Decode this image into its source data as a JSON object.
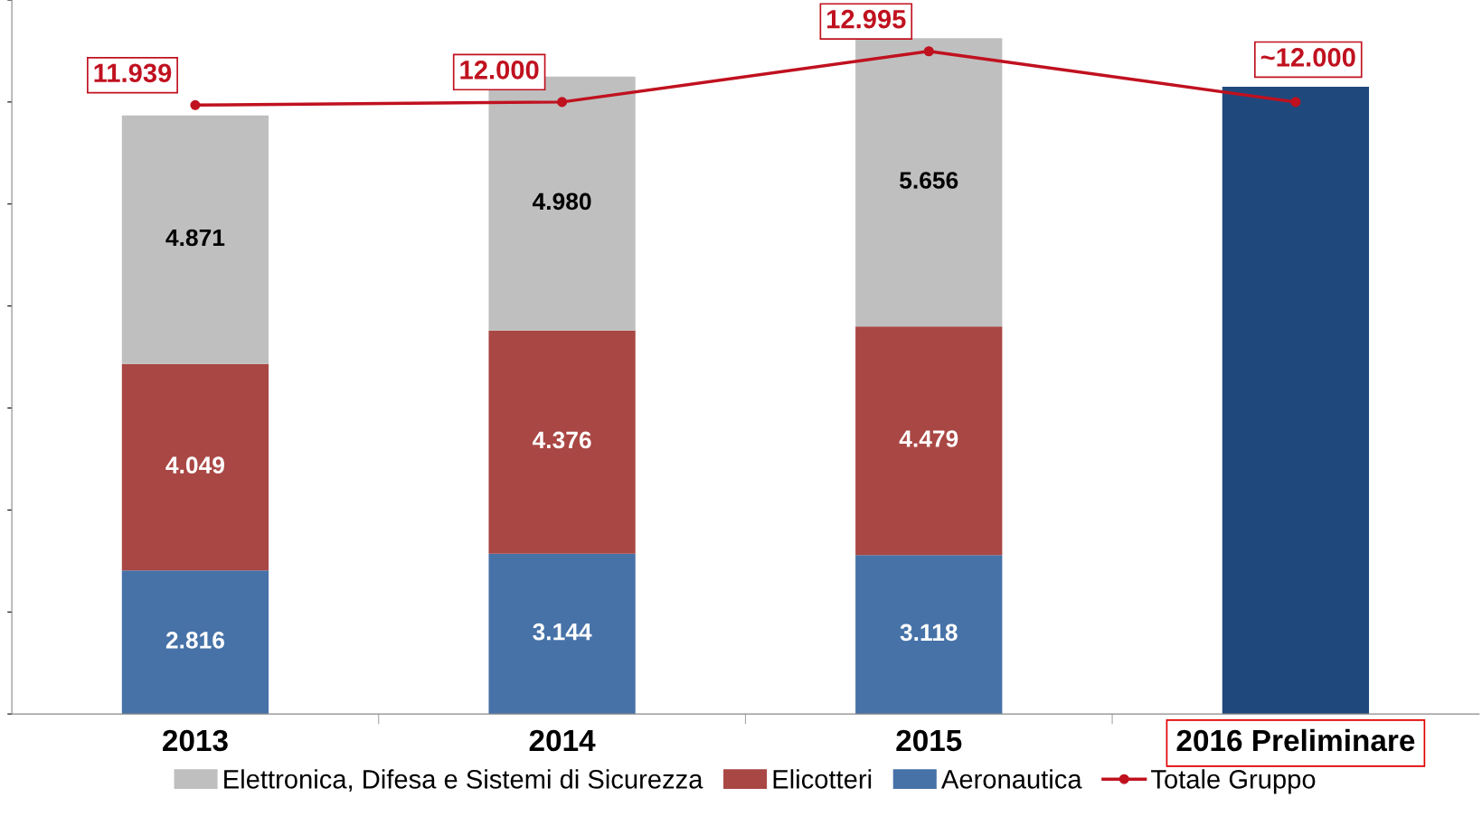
{
  "chart_data": {
    "type": "bar",
    "stacked": true,
    "categories": [
      "2013",
      "2014",
      "2015",
      "2016 Preliminare"
    ],
    "ylim": [
      0,
      14000
    ],
    "yticks": [
      {
        "value": 0,
        "label": null
      },
      {
        "value": 2000,
        "label": null
      },
      {
        "value": 4000,
        "label": null
      },
      {
        "value": 6000,
        "label": null
      },
      {
        "value": 8000,
        "label": null
      },
      {
        "value": 10000,
        "label": null
      },
      {
        "value": 12000,
        "label": null
      },
      {
        "value": 14000,
        "label": null
      }
    ],
    "grid": false,
    "legend": "bottom",
    "marker": "circle",
    "series": [
      {
        "name": "Aeronautica",
        "color": "#4672a8",
        "values": [
          2816,
          3144,
          3118,
          null
        ],
        "value_labels": [
          "2.816",
          "3.144",
          "3.118",
          null
        ]
      },
      {
        "name": "Elicotteri",
        "color": "#a94744",
        "values": [
          4049,
          4376,
          4479,
          null
        ],
        "value_labels": [
          "4.049",
          "4.376",
          "4.479",
          null
        ]
      },
      {
        "name": "Elettronica, Difesa e Sistemi di Sicurezza",
        "color": "#bfbfbf",
        "values": [
          4871,
          4980,
          5656,
          null
        ],
        "value_labels": [
          "4.871",
          "4.980",
          "5.656",
          null
        ]
      },
      {
        "color": "#1f497d",
        "values": [
          null,
          null,
          null,
          12300
        ]
      },
      {
        "name": "Totale Gruppo",
        "type": "line",
        "color": "#c0111f",
        "values": [
          11939,
          12000,
          12995,
          12000
        ],
        "value_labels": [
          "11.939",
          "12.000",
          "12.995",
          "~12.000"
        ]
      }
    ]
  }
}
